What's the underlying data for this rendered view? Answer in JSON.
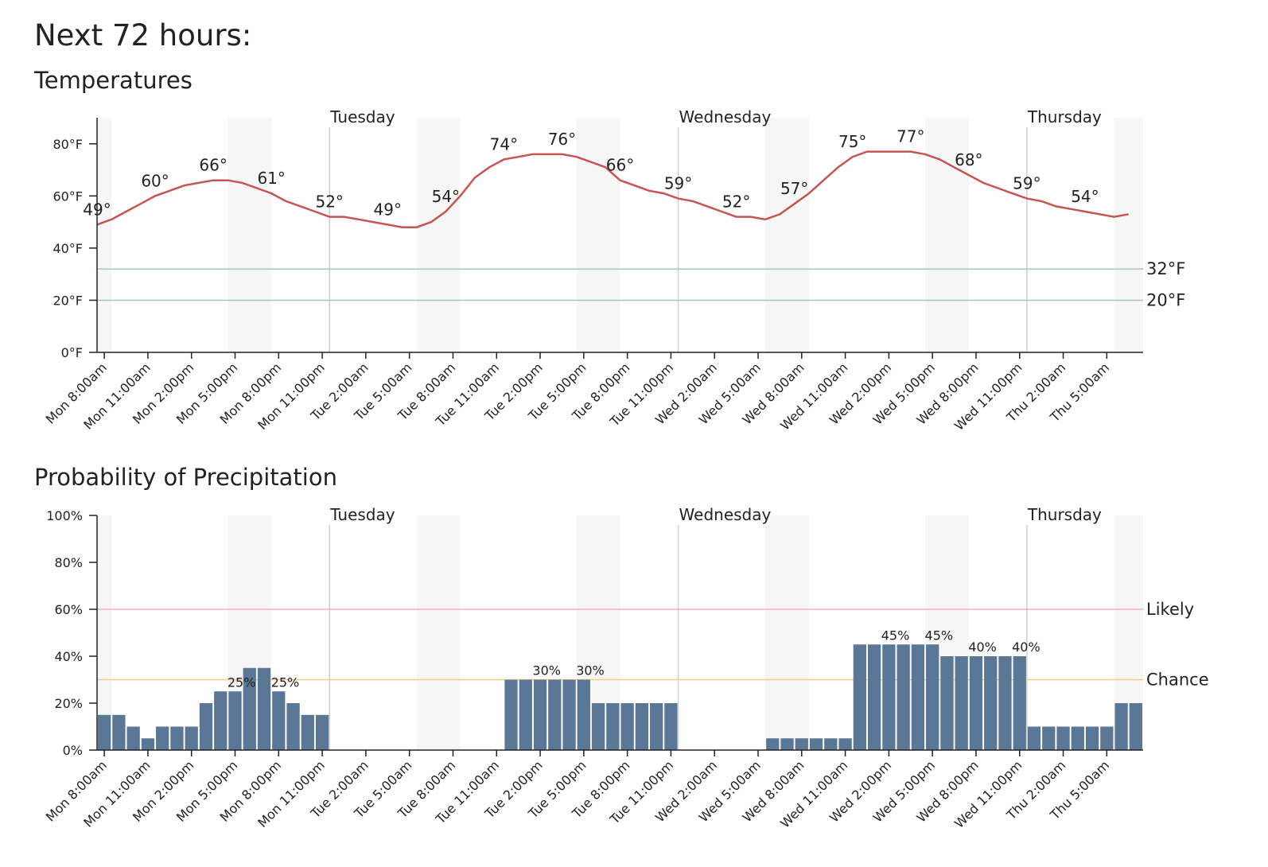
{
  "page_title": "Next 72 hours:",
  "chart_data": [
    {
      "type": "line",
      "title": "Temperatures",
      "color": "#c65551",
      "categories": [
        "Mon 8:00am",
        null,
        null,
        "Mon 11:00am",
        null,
        null,
        "Mon 2:00pm",
        null,
        null,
        "Mon 5:00pm",
        null,
        null,
        "Mon 8:00pm",
        null,
        null,
        "Mon 11:00pm",
        null,
        null,
        "Tue 2:00am",
        null,
        null,
        "Tue 5:00am",
        null,
        null,
        "Tue 8:00am",
        null,
        null,
        "Tue 11:00am",
        null,
        null,
        "Tue 2:00pm",
        null,
        null,
        "Tue 5:00pm",
        null,
        null,
        "Tue 8:00pm",
        null,
        null,
        "Tue 11:00pm",
        null,
        null,
        "Wed 2:00am",
        null,
        null,
        "Wed 5:00am",
        null,
        null,
        "Wed 8:00am",
        null,
        null,
        "Wed 11:00am",
        null,
        null,
        "Wed 2:00pm",
        null,
        null,
        "Wed 5:00pm",
        null,
        null,
        "Wed 8:00pm",
        null,
        null,
        "Wed 11:00pm",
        null,
        null,
        "Thu 2:00am",
        null,
        null,
        "Thu 5:00am",
        null,
        null
      ],
      "values": [
        49,
        51,
        54,
        57,
        60,
        62,
        64,
        65,
        66,
        66,
        65,
        63,
        61,
        58,
        56,
        54,
        52,
        52,
        51,
        50,
        49,
        48,
        48,
        50,
        54,
        60,
        67,
        71,
        74,
        75,
        76,
        76,
        76,
        75,
        73,
        71,
        66,
        64,
        62,
        61,
        59,
        58,
        56,
        54,
        52,
        52,
        51,
        53,
        57,
        61,
        66,
        71,
        75,
        77,
        77,
        77,
        77,
        76,
        74,
        71,
        68,
        65,
        63,
        61,
        59,
        58,
        56,
        55,
        54,
        53,
        52,
        53
      ],
      "value_labels": [
        "49°",
        null,
        null,
        null,
        "60°",
        null,
        null,
        null,
        "66°",
        null,
        null,
        null,
        "61°",
        null,
        null,
        null,
        "52°",
        null,
        null,
        null,
        "49°",
        null,
        null,
        null,
        "54°",
        null,
        null,
        null,
        "74°",
        null,
        null,
        null,
        "76°",
        null,
        null,
        null,
        "66°",
        null,
        null,
        null,
        "59°",
        null,
        null,
        null,
        "52°",
        null,
        null,
        null,
        "57°",
        null,
        null,
        null,
        "75°",
        null,
        null,
        null,
        "77°",
        null,
        null,
        null,
        "68°",
        null,
        null,
        null,
        "59°",
        null,
        null,
        null,
        "54°",
        null,
        null,
        null
      ],
      "ylim": [
        0,
        90
      ],
      "yticks": [
        {
          "value": 0,
          "label": "0°F"
        },
        {
          "value": 20,
          "label": "20°F"
        },
        {
          "value": 40,
          "label": "40°F"
        },
        {
          "value": 60,
          "label": "60°F"
        },
        {
          "value": 80,
          "label": "80°F"
        }
      ],
      "reference_lines": [
        {
          "value": 32,
          "label": "32°F",
          "color": "#a9c2d2",
          "label_color": "#1f3447"
        },
        {
          "value": 20,
          "label": "20°F",
          "color": "#a9c2d2",
          "label_color": "#1f3447"
        }
      ],
      "day_markers": [
        {
          "label": "Tuesday",
          "at": 16
        },
        {
          "label": "Wednesday",
          "at": 40
        },
        {
          "label": "Thursday",
          "at": 64
        }
      ]
    },
    {
      "type": "bar",
      "title": "Probability of Precipitation",
      "color": "#5a7795",
      "categories": [
        "Mon 8:00am",
        null,
        null,
        "Mon 11:00am",
        null,
        null,
        "Mon 2:00pm",
        null,
        null,
        "Mon 5:00pm",
        null,
        null,
        "Mon 8:00pm",
        null,
        null,
        "Mon 11:00pm",
        null,
        null,
        "Tue 2:00am",
        null,
        null,
        "Tue 5:00am",
        null,
        null,
        "Tue 8:00am",
        null,
        null,
        "Tue 11:00am",
        null,
        null,
        "Tue 2:00pm",
        null,
        null,
        "Tue 5:00pm",
        null,
        null,
        "Tue 8:00pm",
        null,
        null,
        "Tue 11:00pm",
        null,
        null,
        "Wed 2:00am",
        null,
        null,
        "Wed 5:00am",
        null,
        null,
        "Wed 8:00am",
        null,
        null,
        "Wed 11:00am",
        null,
        null,
        "Wed 2:00pm",
        null,
        null,
        "Wed 5:00pm",
        null,
        null,
        "Wed 8:00pm",
        null,
        null,
        "Wed 11:00pm",
        null,
        null,
        "Thu 2:00am",
        null,
        null,
        "Thu 5:00am",
        null,
        null
      ],
      "values": [
        15,
        15,
        10,
        5,
        10,
        10,
        10,
        20,
        25,
        25,
        35,
        35,
        25,
        20,
        15,
        15,
        0,
        0,
        0,
        0,
        0,
        0,
        0,
        0,
        0,
        0,
        0,
        0,
        30,
        30,
        30,
        30,
        30,
        30,
        20,
        20,
        20,
        20,
        20,
        20,
        0,
        0,
        0,
        0,
        0,
        0,
        5,
        5,
        5,
        5,
        5,
        5,
        45,
        45,
        45,
        45,
        45,
        45,
        40,
        40,
        40,
        40,
        40,
        40,
        10,
        10,
        10,
        10,
        10,
        10,
        20,
        20
      ],
      "value_labels": [
        null,
        null,
        null,
        null,
        null,
        null,
        null,
        null,
        null,
        "25%",
        null,
        null,
        "25%",
        null,
        null,
        null,
        null,
        null,
        null,
        null,
        null,
        null,
        null,
        null,
        null,
        null,
        null,
        null,
        null,
        null,
        "30%",
        null,
        null,
        "30%",
        null,
        null,
        null,
        null,
        null,
        null,
        null,
        null,
        null,
        null,
        null,
        null,
        null,
        null,
        null,
        null,
        null,
        null,
        null,
        null,
        "45%",
        null,
        null,
        "45%",
        null,
        null,
        "40%",
        null,
        null,
        "40%",
        null,
        null,
        null,
        null,
        null,
        null,
        null,
        null
      ],
      "ylim": [
        0,
        100
      ],
      "yticks": [
        {
          "value": 0,
          "label": "0%"
        },
        {
          "value": 20,
          "label": "20%"
        },
        {
          "value": 40,
          "label": "40%"
        },
        {
          "value": 60,
          "label": "60%"
        },
        {
          "value": 80,
          "label": "80%"
        },
        {
          "value": 100,
          "label": "100%"
        }
      ],
      "reference_lines": [
        {
          "value": 60,
          "label": "Likely",
          "color": "#f3b0b0",
          "label_color": "#4b0d14"
        },
        {
          "value": 30,
          "label": "Chance",
          "color": "#f8ca8e",
          "label_color": "#5a3a08"
        }
      ],
      "day_markers": [
        {
          "label": "Tuesday",
          "at": 16
        },
        {
          "label": "Wednesday",
          "at": 40
        },
        {
          "label": "Thursday",
          "at": 64
        }
      ]
    }
  ]
}
